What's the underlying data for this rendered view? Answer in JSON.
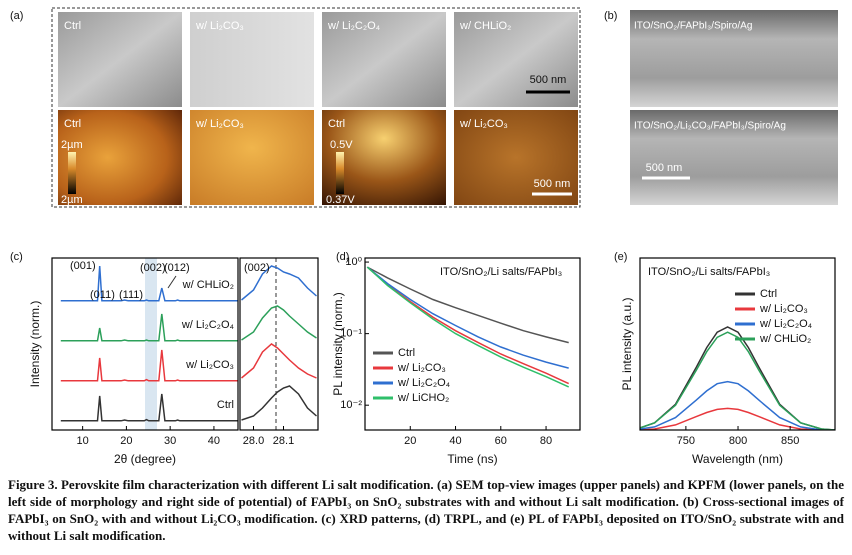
{
  "figure": {
    "panel_labels": [
      "(a)",
      "(b)",
      "(c)",
      "(d)",
      "(e)"
    ],
    "sem_labels": [
      "Ctrl",
      "w/ Li₂CO₃",
      "w/ Li₂C₂O₄",
      "w/ CHLiO₂"
    ],
    "sem_scale": "500 nm",
    "kpfm_labels": [
      "Ctrl",
      "w/ Li₂CO₃",
      "Ctrl",
      "w/ Li₂CO₃"
    ],
    "kpfm_colorbar": [
      "2µm",
      "2µm",
      "0.5V",
      "0.37V"
    ],
    "kpfm_scale": "500 nm",
    "cross_labels": [
      "ITO/SnO₂/FAPbI₃/Spiro/Ag",
      "ITO/SnO₂/Li₂CO₃/FAPbI₃/Spiro/Ag"
    ],
    "cross_scale": "500 nm",
    "caption": "Figure 3. Perovskite film characterization with different Li salt modification. (a) SEM top-view images (upper panels) and KPFM (lower panels, on the left side of morphology and right side of potential) of FAPbI₃ on SnO₂ substrates with and without Li salt modification. (b) Cross-sectional images of FAPbI₃ on SnO₂ with and without Li₂CO₃ modification. (c) XRD patterns, (d) TRPL, and (e) PL of FAPbI₃ deposited on ITO/SnO₂ substrate with and without Li salt modification."
  },
  "chart_data": [
    {
      "type": "line",
      "xlabel": "2θ (degree)",
      "ylabel": "Intensity (norm.)",
      "annotations": [
        "(001)",
        "(011)",
        "(111)",
        "(002)",
        "(012)"
      ],
      "x": [
        5,
        13.4,
        13.9,
        14.4,
        18.8,
        19.6,
        20.4,
        24.1,
        24.6,
        25.1,
        27.4,
        28.1,
        28.8,
        31.2,
        31.7,
        32.2,
        40,
        45.5
      ],
      "xlim": [
        3,
        45.5
      ],
      "xticks": [
        10,
        20,
        30,
        40
      ],
      "ylim": [
        -0.2,
        4.1
      ],
      "series": [
        {
          "name": "Ctrl",
          "color": "#333333",
          "values": [
            0.03,
            0.03,
            0.65,
            0.03,
            0.03,
            0.05,
            0.03,
            0.03,
            0.06,
            0.03,
            0.03,
            0.7,
            0.03,
            0.03,
            0.05,
            0.03,
            0.03,
            0.03
          ]
        },
        {
          "name": "w/ Li₂CO₃",
          "color": "#e8383d",
          "values": [
            0.03,
            0.03,
            0.6,
            0.03,
            0.03,
            0.05,
            0.03,
            0.03,
            0.06,
            0.03,
            0.03,
            0.8,
            0.03,
            0.03,
            0.05,
            0.03,
            0.03,
            0.03
          ]
        },
        {
          "name": "w/ Li₂C₂O₄",
          "color": "#2ca05a",
          "values": [
            0.03,
            0.03,
            0.35,
            0.03,
            0.03,
            0.05,
            0.03,
            0.03,
            0.05,
            0.03,
            0.03,
            0.7,
            0.03,
            0.03,
            0.05,
            0.03,
            0.03,
            0.03
          ]
        },
        {
          "name": "w/ CHLiO₂",
          "color": "#2f6fd0",
          "values": [
            0.03,
            0.03,
            0.9,
            0.03,
            0.03,
            0.05,
            0.03,
            0.03,
            0.05,
            0.03,
            0.03,
            0.35,
            0.03,
            0.03,
            0.05,
            0.03,
            0.03,
            0.03
          ]
        }
      ]
    },
    {
      "type": "line",
      "annotations": [
        "(002)"
      ],
      "x": [
        27.96,
        28.0,
        28.03,
        28.06,
        28.08,
        28.1,
        28.12,
        28.15,
        28.18,
        28.21
      ],
      "xlim": [
        27.955,
        28.215
      ],
      "xticks": [
        {
          "value": 28.0,
          "label": "28.0"
        },
        28.1
      ],
      "ylim": [
        -0.2,
        4.1
      ],
      "series": [
        {
          "color": "#333333",
          "values": [
            0.05,
            0.15,
            0.35,
            0.6,
            0.75,
            0.85,
            0.9,
            0.7,
            0.35,
            0.15
          ]
        },
        {
          "color": "#e8383d",
          "values": [
            0.1,
            0.35,
            0.75,
            0.95,
            0.85,
            0.7,
            0.55,
            0.35,
            0.2,
            0.1
          ]
        },
        {
          "color": "#2ca05a",
          "values": [
            0.05,
            0.25,
            0.6,
            0.85,
            0.9,
            0.8,
            0.65,
            0.45,
            0.25,
            0.1
          ]
        },
        {
          "color": "#2f6fd0",
          "values": [
            0.05,
            0.3,
            0.7,
            0.9,
            0.85,
            0.75,
            0.7,
            0.6,
            0.35,
            0.15
          ]
        }
      ]
    },
    {
      "type": "line",
      "xlabel": "Time (ns)",
      "ylabel": "PL intensity (norm.)",
      "yscale": "log",
      "legend": "lower left",
      "annotations": [
        "ITO/SnO₂/Li salts/FAPbI₃"
      ],
      "x": [
        1,
        10,
        20,
        30,
        40,
        50,
        60,
        70,
        80,
        90
      ],
      "xlim": [
        0,
        95
      ],
      "xticks": [
        20,
        40,
        60,
        80
      ],
      "ylim": [
        0.0045,
        1.14
      ],
      "yticks": [
        {
          "value": 0.01,
          "label": "10⁻²"
        },
        {
          "value": 0.1,
          "label": "10⁻¹"
        },
        {
          "value": 1,
          "label": "10⁰"
        }
      ],
      "series": [
        {
          "name": "Ctrl",
          "color": "#555555",
          "values": [
            0.85,
            0.6,
            0.42,
            0.3,
            0.23,
            0.18,
            0.14,
            0.11,
            0.09,
            0.075
          ]
        },
        {
          "name": "w/ Li₂CO₃",
          "color": "#e8383d",
          "values": [
            0.85,
            0.48,
            0.28,
            0.17,
            0.11,
            0.075,
            0.052,
            0.038,
            0.028,
            0.02
          ]
        },
        {
          "name": "w/ Li₂C₂O₄",
          "color": "#2f6fd0",
          "values": [
            0.85,
            0.5,
            0.3,
            0.19,
            0.13,
            0.09,
            0.065,
            0.05,
            0.04,
            0.033
          ]
        },
        {
          "name": "w/ LiCHO₂",
          "color": "#2fbf6a",
          "values": [
            0.85,
            0.47,
            0.27,
            0.16,
            0.1,
            0.068,
            0.047,
            0.034,
            0.025,
            0.018
          ]
        }
      ]
    },
    {
      "type": "line",
      "xlabel": "Wavelength (nm)",
      "ylabel": "PL intensity (a.u.)",
      "legend": "upper right",
      "annotations": [
        "ITO/SnO₂/Li salts/FAPbI₃"
      ],
      "x": [
        706,
        720,
        740,
        760,
        770,
        780,
        790,
        800,
        810,
        820,
        840,
        860,
        880,
        893
      ],
      "xlim": [
        706,
        893
      ],
      "xticks": [
        750,
        800,
        850
      ],
      "ylim": [
        0,
        1.67
      ],
      "series": [
        {
          "name": "Ctrl",
          "color": "#333333",
          "values": [
            0.02,
            0.07,
            0.25,
            0.61,
            0.8,
            0.95,
            1.0,
            0.95,
            0.8,
            0.61,
            0.25,
            0.07,
            0.01,
            0.0
          ]
        },
        {
          "name": "w/ Li₂CO₃",
          "color": "#e8383d",
          "values": [
            0.0,
            0.01,
            0.05,
            0.13,
            0.17,
            0.2,
            0.21,
            0.2,
            0.17,
            0.13,
            0.05,
            0.01,
            0.0,
            0.0
          ]
        },
        {
          "name": "w/ Li₂C₂O₄",
          "color": "#2f6fd0",
          "values": [
            0.01,
            0.03,
            0.12,
            0.29,
            0.38,
            0.45,
            0.47,
            0.45,
            0.38,
            0.29,
            0.12,
            0.03,
            0.0,
            0.0
          ]
        },
        {
          "name": "w/ CHLiO₂",
          "color": "#2ca05a",
          "values": [
            0.02,
            0.07,
            0.24,
            0.58,
            0.76,
            0.9,
            0.95,
            0.9,
            0.76,
            0.58,
            0.24,
            0.07,
            0.01,
            0.0
          ]
        }
      ]
    }
  ]
}
